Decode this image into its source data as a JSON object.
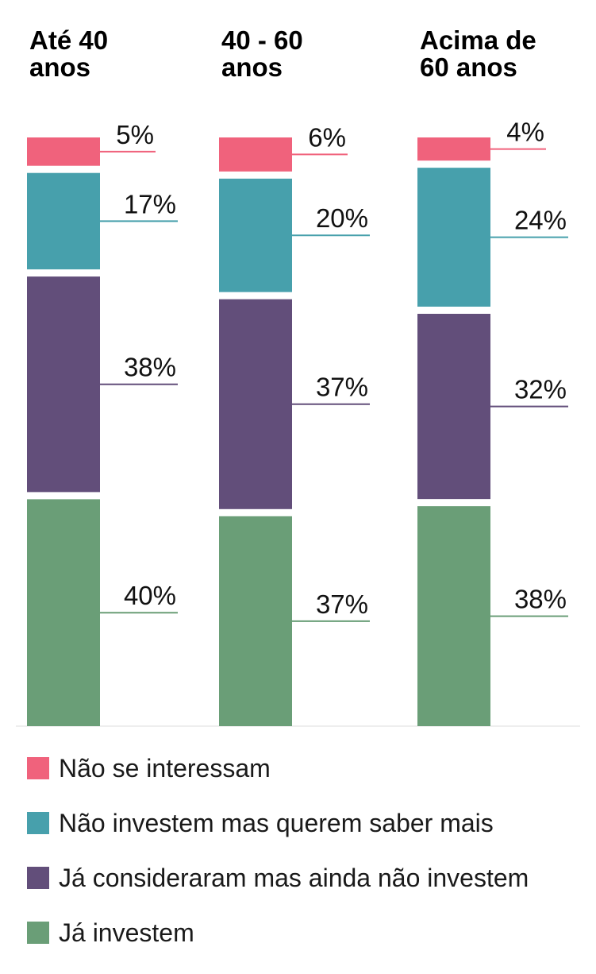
{
  "chart_data": {
    "type": "bar",
    "stacked": true,
    "categories": [
      "Até 40 anos",
      "40 - 60 anos",
      "Acima de 60 anos"
    ],
    "category_title_lines": [
      [
        "Até 40",
        "anos"
      ],
      [
        "40 - 60",
        "anos"
      ],
      [
        "Acima de",
        "60 anos"
      ]
    ],
    "series": [
      {
        "name": "Já investem",
        "color": "#6a9e77",
        "values": [
          40,
          37,
          38
        ],
        "labels": [
          "40%",
          "37%",
          "38%"
        ]
      },
      {
        "name": "Já consideraram mas ainda não investem",
        "color": "#624e7a",
        "values": [
          38,
          37,
          32
        ],
        "labels": [
          "38%",
          "37%",
          "32%"
        ]
      },
      {
        "name": "Não investem mas querem saber mais",
        "color": "#47a0ac",
        "values": [
          17,
          20,
          24
        ],
        "labels": [
          "17%",
          "20%",
          "24%"
        ]
      },
      {
        "name": "Não se interessam",
        "color": "#f0627c",
        "values": [
          5,
          6,
          4
        ],
        "labels": [
          "5%",
          "6%",
          "4%"
        ]
      }
    ],
    "ylim": [
      0,
      100
    ],
    "grid": false,
    "legend_position": "bottom",
    "title": "",
    "xlabel": "",
    "ylabel": ""
  },
  "legend": [
    {
      "label": "Não se interessam",
      "color": "#f0627c"
    },
    {
      "label": "Não investem mas querem saber mais",
      "color": "#47a0ac"
    },
    {
      "label": "Já consideraram mas ainda não investem",
      "color": "#624e7a"
    },
    {
      "label": "Já investem",
      "color": "#6a9e77"
    }
  ]
}
